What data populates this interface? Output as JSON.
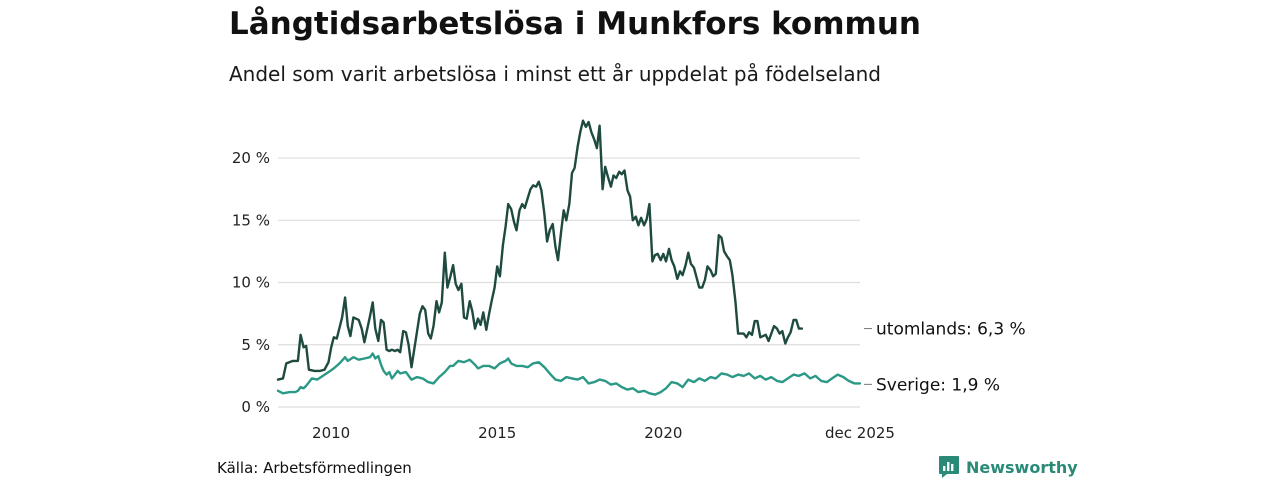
{
  "title": "Långtidsarbetslösa i Munkfors kommun",
  "subtitle": "Andel som varit arbetslösa i minst ett år uppdelat på födelseland",
  "source": "Källa: Arbetsförmedlingen",
  "brand": {
    "name": "Newsworthy",
    "icon": "newsworthy-logo-icon"
  },
  "colors": {
    "foreign": "#1e4a3f",
    "sweden": "#2b9986",
    "grid": "#dddddd",
    "brand": "#2a8a78"
  },
  "chart_data": {
    "type": "line",
    "title": "Långtidsarbetslösa i Munkfors kommun",
    "xlabel": "",
    "ylabel": "",
    "xlim": [
      2008.4,
      2025.92
    ],
    "ylim": [
      0,
      23.5
    ],
    "y_ticks": [
      0,
      5,
      10,
      15,
      20
    ],
    "y_tick_labels": [
      "0 %",
      "5 %",
      "10 %",
      "15 %",
      "20 %"
    ],
    "x_ticks": [
      2010,
      2015,
      2020,
      2025.92
    ],
    "x_tick_labels": [
      "2010",
      "2015",
      "2020",
      "dec 2025"
    ],
    "grid": true,
    "series": [
      {
        "name": "utomlands",
        "end_label": "utomlands: 6,3 %",
        "points": [
          [
            2008.4,
            2.2
          ],
          [
            2008.55,
            2.3
          ],
          [
            2008.65,
            3.5
          ],
          [
            2008.85,
            3.7
          ],
          [
            2009.0,
            3.7
          ],
          [
            2009.08,
            5.8
          ],
          [
            2009.17,
            4.8
          ],
          [
            2009.25,
            4.9
          ],
          [
            2009.33,
            3.0
          ],
          [
            2009.5,
            2.9
          ],
          [
            2009.67,
            2.9
          ],
          [
            2009.8,
            3.0
          ],
          [
            2009.92,
            3.6
          ],
          [
            2010.0,
            4.8
          ],
          [
            2010.08,
            5.6
          ],
          [
            2010.17,
            5.5
          ],
          [
            2010.33,
            7.2
          ],
          [
            2010.42,
            8.8
          ],
          [
            2010.5,
            6.5
          ],
          [
            2010.58,
            5.7
          ],
          [
            2010.67,
            7.2
          ],
          [
            2010.83,
            7.0
          ],
          [
            2010.92,
            6.3
          ],
          [
            2011.0,
            5.2
          ],
          [
            2011.17,
            7.3
          ],
          [
            2011.25,
            8.4
          ],
          [
            2011.33,
            6.3
          ],
          [
            2011.42,
            5.3
          ],
          [
            2011.5,
            7.0
          ],
          [
            2011.58,
            6.8
          ],
          [
            2011.67,
            4.6
          ],
          [
            2011.75,
            4.5
          ],
          [
            2011.83,
            4.6
          ],
          [
            2011.92,
            4.5
          ],
          [
            2012.0,
            4.6
          ],
          [
            2012.08,
            4.4
          ],
          [
            2012.17,
            6.1
          ],
          [
            2012.25,
            6.0
          ],
          [
            2012.33,
            5.0
          ],
          [
            2012.42,
            3.2
          ],
          [
            2012.5,
            4.6
          ],
          [
            2012.58,
            6.0
          ],
          [
            2012.67,
            7.5
          ],
          [
            2012.75,
            8.1
          ],
          [
            2012.83,
            7.8
          ],
          [
            2012.92,
            5.9
          ],
          [
            2013.0,
            5.5
          ],
          [
            2013.08,
            6.5
          ],
          [
            2013.17,
            8.5
          ],
          [
            2013.25,
            7.6
          ],
          [
            2013.33,
            8.4
          ],
          [
            2013.42,
            12.4
          ],
          [
            2013.5,
            9.6
          ],
          [
            2013.58,
            10.4
          ],
          [
            2013.67,
            11.4
          ],
          [
            2013.75,
            9.9
          ],
          [
            2013.83,
            9.4
          ],
          [
            2013.92,
            9.9
          ],
          [
            2014.0,
            7.2
          ],
          [
            2014.08,
            7.1
          ],
          [
            2014.17,
            8.5
          ],
          [
            2014.25,
            7.7
          ],
          [
            2014.33,
            6.3
          ],
          [
            2014.42,
            7.1
          ],
          [
            2014.5,
            6.6
          ],
          [
            2014.58,
            7.6
          ],
          [
            2014.67,
            6.2
          ],
          [
            2014.75,
            7.4
          ],
          [
            2014.83,
            8.5
          ],
          [
            2014.92,
            9.6
          ],
          [
            2015.0,
            11.3
          ],
          [
            2015.08,
            10.5
          ],
          [
            2015.17,
            13.0
          ],
          [
            2015.25,
            14.5
          ],
          [
            2015.33,
            16.3
          ],
          [
            2015.42,
            15.9
          ],
          [
            2015.5,
            14.9
          ],
          [
            2015.58,
            14.2
          ],
          [
            2015.67,
            15.8
          ],
          [
            2015.75,
            16.3
          ],
          [
            2015.83,
            16.0
          ],
          [
            2015.92,
            16.8
          ],
          [
            2016.0,
            17.5
          ],
          [
            2016.08,
            17.8
          ],
          [
            2016.17,
            17.7
          ],
          [
            2016.25,
            18.1
          ],
          [
            2016.33,
            17.4
          ],
          [
            2016.42,
            15.5
          ],
          [
            2016.5,
            13.3
          ],
          [
            2016.58,
            14.2
          ],
          [
            2016.67,
            14.7
          ],
          [
            2016.75,
            12.9
          ],
          [
            2016.83,
            11.8
          ],
          [
            2016.92,
            14.0
          ],
          [
            2017.0,
            15.8
          ],
          [
            2017.08,
            15.0
          ],
          [
            2017.17,
            16.3
          ],
          [
            2017.25,
            18.8
          ],
          [
            2017.33,
            19.2
          ],
          [
            2017.42,
            20.9
          ],
          [
            2017.5,
            22.1
          ],
          [
            2017.58,
            23.0
          ],
          [
            2017.67,
            22.5
          ],
          [
            2017.75,
            22.9
          ],
          [
            2017.83,
            22.1
          ],
          [
            2017.92,
            21.5
          ],
          [
            2018.0,
            20.8
          ],
          [
            2018.08,
            22.6
          ],
          [
            2018.17,
            17.5
          ],
          [
            2018.25,
            19.3
          ],
          [
            2018.33,
            18.5
          ],
          [
            2018.42,
            17.7
          ],
          [
            2018.5,
            18.6
          ],
          [
            2018.58,
            18.4
          ],
          [
            2018.67,
            18.9
          ],
          [
            2018.75,
            18.7
          ],
          [
            2018.83,
            19.0
          ],
          [
            2018.92,
            17.4
          ],
          [
            2019.0,
            16.9
          ],
          [
            2019.08,
            15.0
          ],
          [
            2019.17,
            15.3
          ],
          [
            2019.25,
            14.6
          ],
          [
            2019.33,
            15.2
          ],
          [
            2019.42,
            14.6
          ],
          [
            2019.5,
            15.1
          ],
          [
            2019.58,
            16.3
          ],
          [
            2019.67,
            11.7
          ],
          [
            2019.75,
            12.2
          ],
          [
            2019.83,
            12.3
          ],
          [
            2019.92,
            11.8
          ],
          [
            2020.0,
            12.3
          ],
          [
            2020.08,
            11.7
          ],
          [
            2020.17,
            12.7
          ],
          [
            2020.25,
            11.8
          ],
          [
            2020.33,
            11.3
          ],
          [
            2020.42,
            10.3
          ],
          [
            2020.5,
            10.9
          ],
          [
            2020.58,
            10.6
          ],
          [
            2020.67,
            11.4
          ],
          [
            2020.75,
            12.4
          ],
          [
            2020.83,
            11.5
          ],
          [
            2020.92,
            11.2
          ],
          [
            2021.0,
            10.4
          ],
          [
            2021.08,
            9.6
          ],
          [
            2021.17,
            9.6
          ],
          [
            2021.25,
            10.2
          ],
          [
            2021.33,
            11.3
          ],
          [
            2021.42,
            11.0
          ],
          [
            2021.5,
            10.5
          ],
          [
            2021.58,
            10.7
          ],
          [
            2021.67,
            13.8
          ],
          [
            2021.75,
            13.6
          ],
          [
            2021.83,
            12.5
          ],
          [
            2021.92,
            12.1
          ],
          [
            2022.0,
            11.8
          ],
          [
            2022.08,
            10.6
          ],
          [
            2022.17,
            8.5
          ],
          [
            2022.25,
            5.9
          ],
          [
            2022.33,
            5.9
          ],
          [
            2022.42,
            5.9
          ],
          [
            2022.5,
            5.6
          ],
          [
            2022.58,
            6.0
          ],
          [
            2022.67,
            5.8
          ],
          [
            2022.75,
            6.9
          ],
          [
            2022.83,
            6.9
          ],
          [
            2022.92,
            5.6
          ],
          [
            2023.0,
            5.7
          ],
          [
            2023.08,
            5.8
          ],
          [
            2023.17,
            5.3
          ],
          [
            2023.25,
            5.9
          ],
          [
            2023.33,
            6.5
          ],
          [
            2023.42,
            6.3
          ],
          [
            2023.5,
            5.9
          ],
          [
            2023.58,
            6.1
          ],
          [
            2023.67,
            5.1
          ],
          [
            2023.75,
            5.6
          ],
          [
            2023.83,
            6.0
          ],
          [
            2023.92,
            7.0
          ],
          [
            2024.0,
            7.0
          ],
          [
            2024.08,
            6.3
          ],
          [
            2024.17,
            6.3
          ]
        ]
      },
      {
        "name": "Sverige",
        "end_label": "Sverige: 1,9 %",
        "points": [
          [
            2008.4,
            1.3
          ],
          [
            2008.55,
            1.1
          ],
          [
            2008.75,
            1.2
          ],
          [
            2008.92,
            1.2
          ],
          [
            2009.0,
            1.3
          ],
          [
            2009.08,
            1.6
          ],
          [
            2009.17,
            1.5
          ],
          [
            2009.25,
            1.7
          ],
          [
            2009.42,
            2.3
          ],
          [
            2009.58,
            2.2
          ],
          [
            2009.75,
            2.5
          ],
          [
            2009.92,
            2.8
          ],
          [
            2010.08,
            3.1
          ],
          [
            2010.25,
            3.5
          ],
          [
            2010.42,
            4.0
          ],
          [
            2010.5,
            3.7
          ],
          [
            2010.67,
            4.0
          ],
          [
            2010.83,
            3.8
          ],
          [
            2011.0,
            3.9
          ],
          [
            2011.17,
            4.0
          ],
          [
            2011.25,
            4.3
          ],
          [
            2011.33,
            3.9
          ],
          [
            2011.42,
            4.1
          ],
          [
            2011.5,
            3.4
          ],
          [
            2011.58,
            2.9
          ],
          [
            2011.67,
            2.6
          ],
          [
            2011.75,
            2.8
          ],
          [
            2011.83,
            2.3
          ],
          [
            2011.92,
            2.6
          ],
          [
            2012.0,
            2.9
          ],
          [
            2012.08,
            2.7
          ],
          [
            2012.25,
            2.8
          ],
          [
            2012.42,
            2.2
          ],
          [
            2012.58,
            2.4
          ],
          [
            2012.75,
            2.3
          ],
          [
            2012.92,
            2.0
          ],
          [
            2013.08,
            1.9
          ],
          [
            2013.25,
            2.4
          ],
          [
            2013.42,
            2.8
          ],
          [
            2013.58,
            3.3
          ],
          [
            2013.67,
            3.3
          ],
          [
            2013.83,
            3.7
          ],
          [
            2014.0,
            3.6
          ],
          [
            2014.17,
            3.8
          ],
          [
            2014.33,
            3.4
          ],
          [
            2014.42,
            3.1
          ],
          [
            2014.58,
            3.3
          ],
          [
            2014.75,
            3.3
          ],
          [
            2014.92,
            3.1
          ],
          [
            2015.08,
            3.5
          ],
          [
            2015.25,
            3.7
          ],
          [
            2015.33,
            3.9
          ],
          [
            2015.42,
            3.5
          ],
          [
            2015.58,
            3.3
          ],
          [
            2015.75,
            3.3
          ],
          [
            2015.92,
            3.2
          ],
          [
            2016.08,
            3.5
          ],
          [
            2016.25,
            3.6
          ],
          [
            2016.42,
            3.2
          ],
          [
            2016.58,
            2.7
          ],
          [
            2016.75,
            2.2
          ],
          [
            2016.92,
            2.1
          ],
          [
            2017.08,
            2.4
          ],
          [
            2017.25,
            2.3
          ],
          [
            2017.42,
            2.2
          ],
          [
            2017.58,
            2.4
          ],
          [
            2017.75,
            1.9
          ],
          [
            2017.92,
            2.0
          ],
          [
            2018.08,
            2.2
          ],
          [
            2018.25,
            2.1
          ],
          [
            2018.42,
            1.8
          ],
          [
            2018.58,
            1.9
          ],
          [
            2018.75,
            1.6
          ],
          [
            2018.92,
            1.4
          ],
          [
            2019.08,
            1.5
          ],
          [
            2019.25,
            1.2
          ],
          [
            2019.42,
            1.3
          ],
          [
            2019.58,
            1.1
          ],
          [
            2019.75,
            1.0
          ],
          [
            2019.92,
            1.2
          ],
          [
            2020.08,
            1.5
          ],
          [
            2020.25,
            2.0
          ],
          [
            2020.42,
            1.9
          ],
          [
            2020.58,
            1.6
          ],
          [
            2020.75,
            2.2
          ],
          [
            2020.92,
            2.0
          ],
          [
            2021.08,
            2.3
          ],
          [
            2021.25,
            2.1
          ],
          [
            2021.42,
            2.4
          ],
          [
            2021.58,
            2.3
          ],
          [
            2021.75,
            2.7
          ],
          [
            2021.92,
            2.6
          ],
          [
            2022.08,
            2.4
          ],
          [
            2022.25,
            2.6
          ],
          [
            2022.42,
            2.5
          ],
          [
            2022.58,
            2.7
          ],
          [
            2022.75,
            2.3
          ],
          [
            2022.92,
            2.5
          ],
          [
            2023.08,
            2.2
          ],
          [
            2023.25,
            2.4
          ],
          [
            2023.42,
            2.1
          ],
          [
            2023.58,
            2.0
          ],
          [
            2023.75,
            2.3
          ],
          [
            2023.92,
            2.6
          ],
          [
            2024.08,
            2.5
          ],
          [
            2024.25,
            2.7
          ],
          [
            2024.42,
            2.3
          ],
          [
            2024.58,
            2.5
          ],
          [
            2024.75,
            2.1
          ],
          [
            2024.92,
            2.0
          ],
          [
            2025.08,
            2.3
          ],
          [
            2025.25,
            2.6
          ],
          [
            2025.42,
            2.4
          ],
          [
            2025.58,
            2.1
          ],
          [
            2025.75,
            1.9
          ],
          [
            2025.92,
            1.9
          ]
        ]
      }
    ]
  }
}
